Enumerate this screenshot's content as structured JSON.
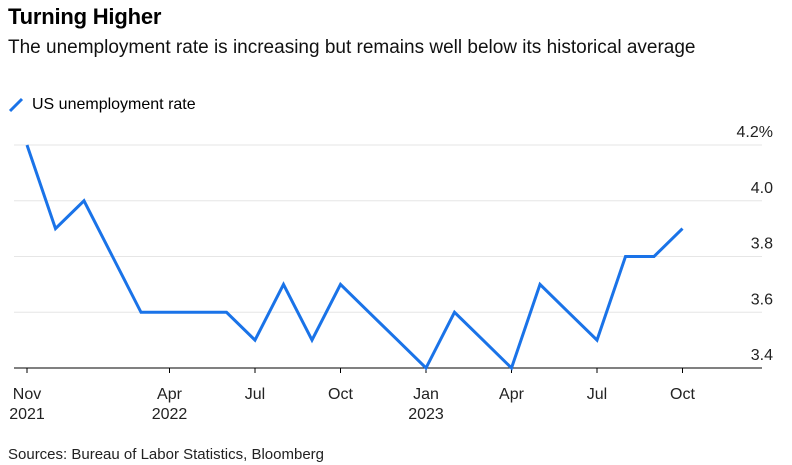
{
  "title": "Turning Higher",
  "subtitle": "The unemployment rate is increasing but remains well below its historical average",
  "source": "Sources: Bureau of Labor Statistics, Bloomberg",
  "colors": {
    "series": "#1a73e8",
    "grid": "#e6e6e6",
    "axis": "#000000"
  },
  "chart_data": {
    "type": "line",
    "title": "Turning Higher",
    "subtitle": "The unemployment rate is increasing but remains well below its historical average",
    "xlabel": "",
    "ylabel": "",
    "ylim": [
      3.4,
      4.2
    ],
    "grid": true,
    "legend": "top-left",
    "y_ticks": [
      "4.2%",
      "4.0",
      "3.8",
      "3.6",
      "3.4"
    ],
    "y_tick_values": [
      4.2,
      4.0,
      3.8,
      3.6,
      3.4
    ],
    "x_ticks": [
      {
        "month": "2021-11",
        "label": "Nov",
        "sub": "2021"
      },
      {
        "month": "2022-04",
        "label": "Apr",
        "sub": "2022"
      },
      {
        "month": "2022-07",
        "label": "Jul",
        "sub": ""
      },
      {
        "month": "2022-10",
        "label": "Oct",
        "sub": ""
      },
      {
        "month": "2023-01",
        "label": "Jan",
        "sub": "2023"
      },
      {
        "month": "2023-04",
        "label": "Apr",
        "sub": ""
      },
      {
        "month": "2023-07",
        "label": "Jul",
        "sub": ""
      },
      {
        "month": "2023-10",
        "label": "Oct",
        "sub": ""
      }
    ],
    "series": [
      {
        "name": "US unemployment rate",
        "x": [
          "2021-11",
          "2021-12",
          "2022-01",
          "2022-02",
          "2022-03",
          "2022-04",
          "2022-05",
          "2022-06",
          "2022-07",
          "2022-08",
          "2022-09",
          "2022-10",
          "2022-11",
          "2022-12",
          "2023-01",
          "2023-02",
          "2023-03",
          "2023-04",
          "2023-05",
          "2023-06",
          "2023-07",
          "2023-08",
          "2023-09",
          "2023-10",
          "2023-11"
        ],
        "values": [
          4.2,
          3.9,
          4.0,
          3.8,
          3.6,
          3.6,
          3.6,
          3.6,
          3.5,
          3.7,
          3.5,
          3.7,
          3.6,
          3.5,
          3.4,
          3.6,
          3.5,
          3.4,
          3.7,
          3.6,
          3.5,
          3.8,
          3.8,
          3.9,
          null
        ]
      }
    ]
  }
}
